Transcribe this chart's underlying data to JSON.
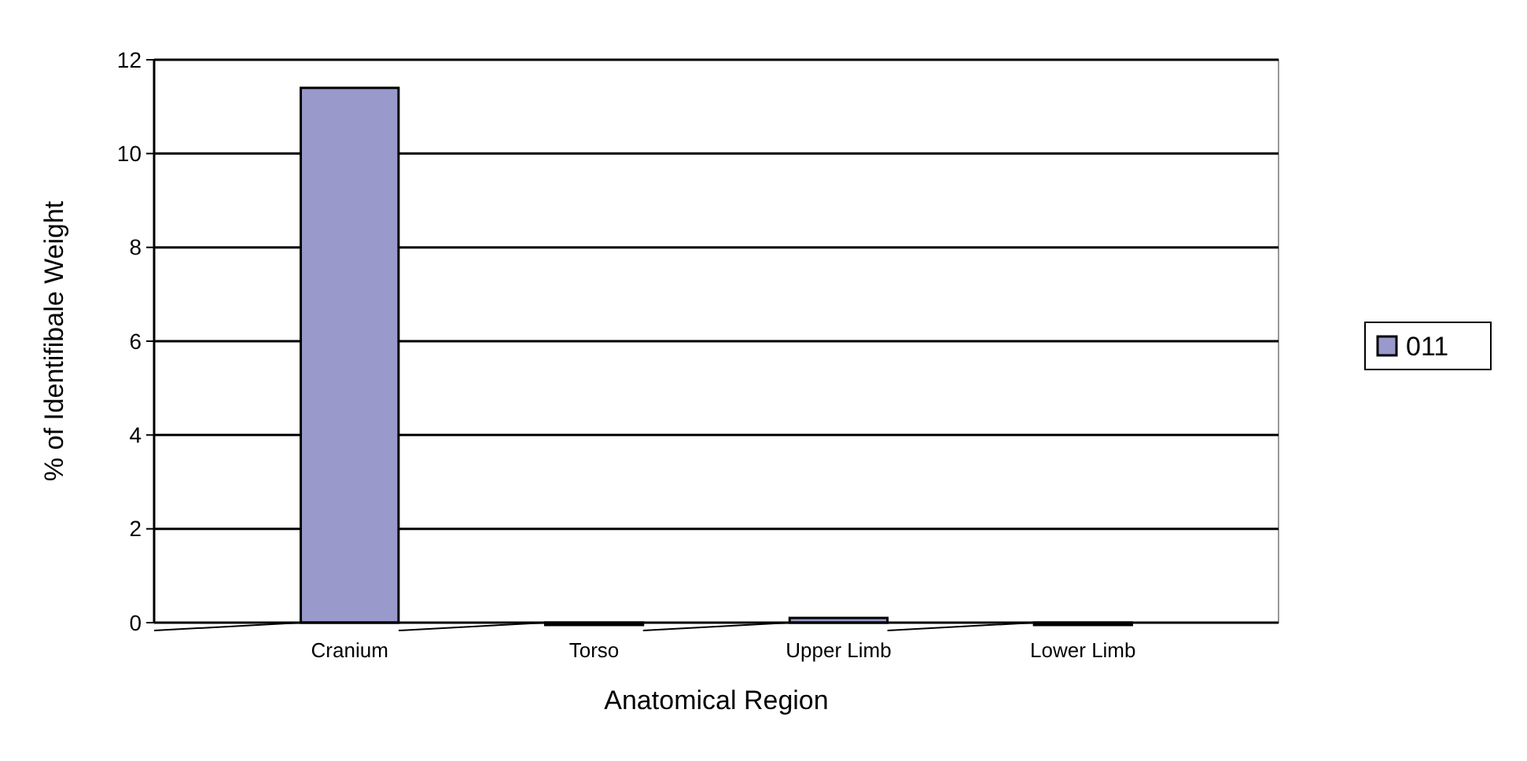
{
  "chart_data": {
    "type": "bar",
    "xlabel": "Anatomical Region",
    "ylabel": "% of Identifibale Weight",
    "categories": [
      "Cranium",
      "Torso",
      "Upper Limb",
      "Lower Limb"
    ],
    "series": [
      {
        "name": "011",
        "color": "#9999cc",
        "values": [
          11.4,
          0,
          0.1,
          0
        ]
      }
    ],
    "ylim": [
      0,
      12
    ],
    "yticks": [
      0,
      2,
      4,
      6,
      8,
      10,
      12
    ],
    "grid": "y",
    "legend": "right"
  }
}
